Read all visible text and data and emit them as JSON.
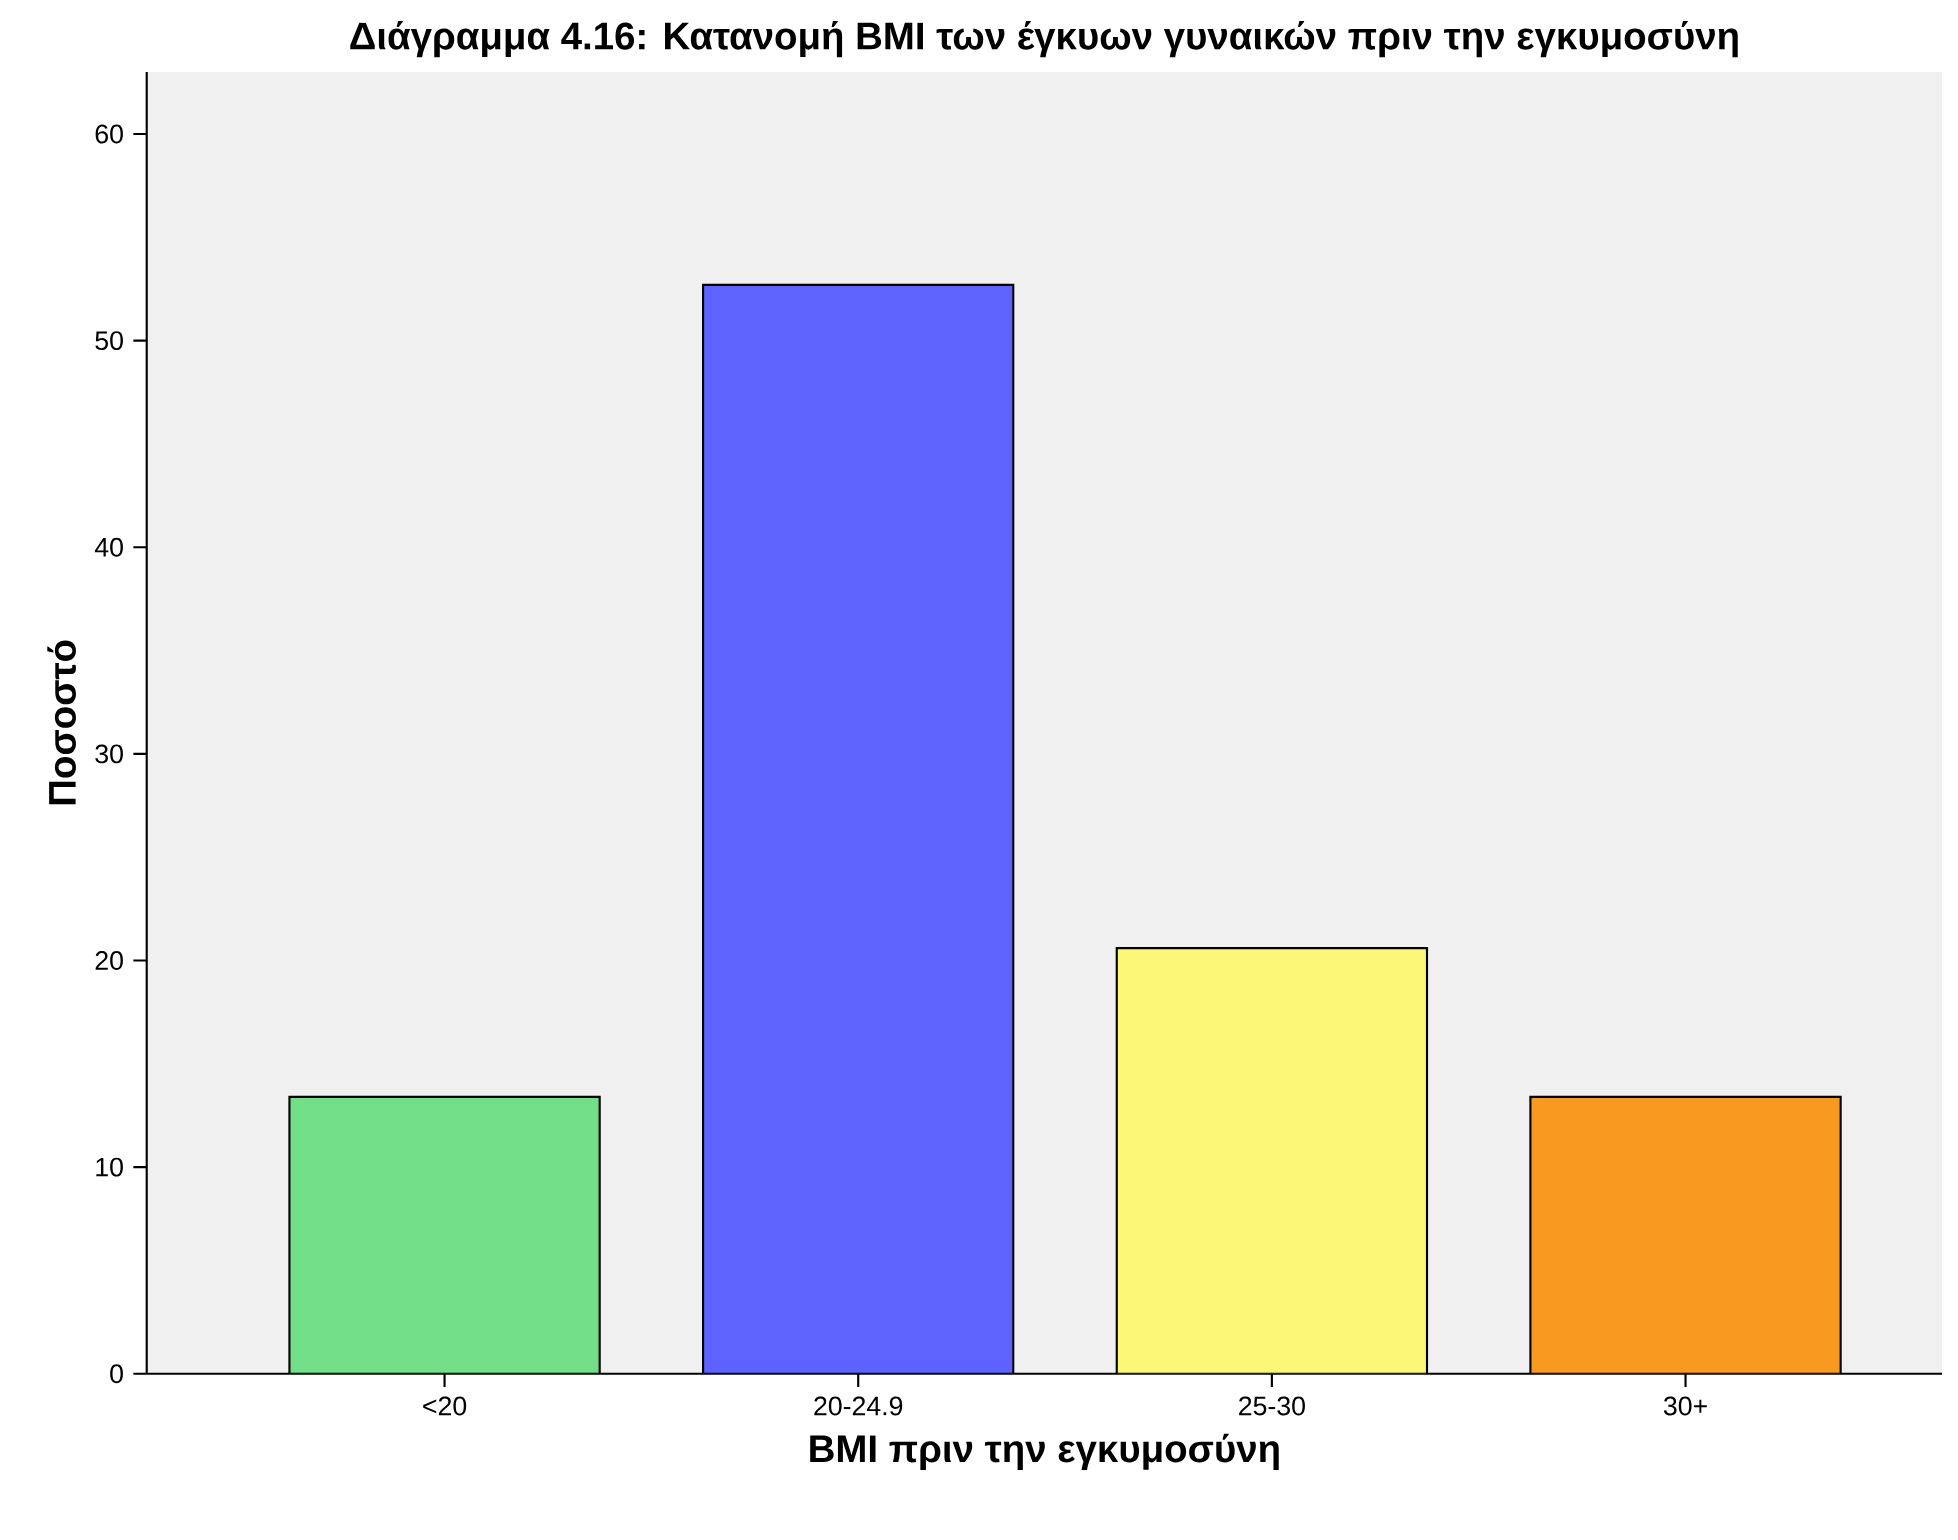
{
  "chart_data": {
    "type": "bar",
    "title": "Διάγραμμα 4.16: Κατανομή BMI των έγκυων γυναικών πριν την εγκυμοσύνη",
    "xlabel": "BMI πριν την εγκυμοσύνη",
    "ylabel": "Ποσοστό",
    "categories": [
      "<20",
      "20-24.9",
      "25-30",
      "30+"
    ],
    "values": [
      13.4,
      52.7,
      20.6,
      13.4
    ],
    "colors": [
      "#72df88",
      "#5e63ff",
      "#fbf877",
      "#f99a20"
    ],
    "ylim": [
      0,
      63
    ],
    "yticks": [
      0,
      10,
      20,
      30,
      40,
      50,
      60
    ],
    "grid": false
  }
}
